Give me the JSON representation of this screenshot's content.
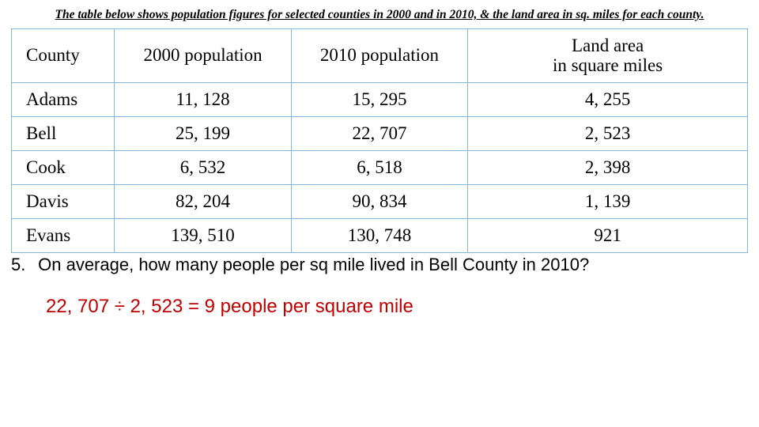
{
  "caption": "The table below shows population figures for selected counties in 2000 and in 2010, & the land area in sq. miles for each county.",
  "table": {
    "headers": {
      "county": "County",
      "pop2000": "2000 population",
      "pop2010": "2010 population",
      "land_line1": "Land area",
      "land_line2": "in square miles"
    },
    "rows": [
      {
        "county": "Adams",
        "pop2000": "11, 128",
        "pop2010": "15, 295",
        "land": "4, 255"
      },
      {
        "county": "Bell",
        "pop2000": "25, 199",
        "pop2010": "22, 707",
        "land": "2, 523"
      },
      {
        "county": "Cook",
        "pop2000": "6, 532",
        "pop2010": "6, 518",
        "land": "2, 398"
      },
      {
        "county": "Davis",
        "pop2000": "82, 204",
        "pop2010": "90, 834",
        "land": "1, 139"
      },
      {
        "county": "Evans",
        "pop2000": "139, 510",
        "pop2010": "130, 748",
        "land": "921"
      }
    ],
    "border_color": "#85b6d6",
    "font_size_pt": 23
  },
  "question": {
    "number": "5.",
    "text": "On average, how many people per sq mile lived in Bell County in 2010?",
    "font_family": "Comic Sans MS",
    "font_size_pt": 22,
    "color": "#000000"
  },
  "answer": {
    "text": "22, 707 ÷ 2, 523 = 9 people per square mile",
    "font_family": "Comic Sans MS",
    "font_size_pt": 24,
    "color": "#c00000"
  },
  "background_color": "#ffffff"
}
